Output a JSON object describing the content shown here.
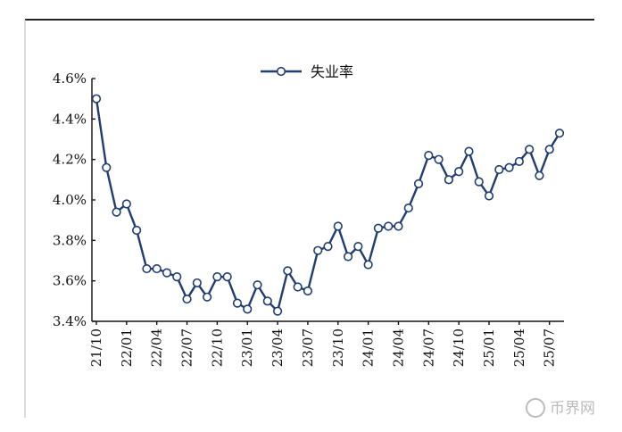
{
  "chart_data": {
    "type": "line",
    "legend_position": "top",
    "categories": [
      "21/10",
      null,
      null,
      "22/01",
      null,
      null,
      "22/04",
      null,
      null,
      "22/07",
      null,
      null,
      "22/10",
      null,
      null,
      "23/01",
      null,
      null,
      "23/04",
      null,
      null,
      "23/07",
      null,
      null,
      "23/10",
      null,
      null,
      "24/01",
      null,
      null,
      "24/04",
      null,
      null,
      "24/07",
      null,
      null,
      "24/10",
      null,
      null,
      "25/01",
      null,
      null,
      "25/04",
      null,
      null,
      "25/07",
      null
    ],
    "series": [
      {
        "name": "失业率",
        "color": "#1f3d72",
        "values": [
          4.5,
          4.16,
          3.94,
          3.98,
          3.85,
          3.66,
          3.66,
          3.64,
          3.62,
          3.51,
          3.59,
          3.52,
          3.62,
          3.62,
          3.49,
          3.46,
          3.58,
          3.5,
          3.45,
          3.65,
          3.57,
          3.55,
          3.75,
          3.77,
          3.87,
          3.72,
          3.77,
          3.68,
          3.86,
          3.87,
          3.87,
          3.96,
          4.08,
          4.22,
          4.2,
          4.1,
          4.14,
          4.24,
          4.09,
          4.02,
          4.15,
          4.16,
          4.19,
          4.25,
          4.12,
          4.25,
          4.33
        ]
      }
    ],
    "ylim": [
      3.4,
      4.6
    ],
    "yticks": [
      {
        "value": 3.4,
        "label": "3.4%"
      },
      {
        "value": 3.6,
        "label": "3.6%"
      },
      {
        "value": 3.8,
        "label": "3.8%"
      },
      {
        "value": 4.0,
        "label": "4.0%"
      },
      {
        "value": 4.2,
        "label": "4.2%"
      },
      {
        "value": 4.4,
        "label": "4.4%"
      },
      {
        "value": 4.6,
        "label": "4.6%"
      }
    ],
    "grid": false
  },
  "watermark": "币界网"
}
